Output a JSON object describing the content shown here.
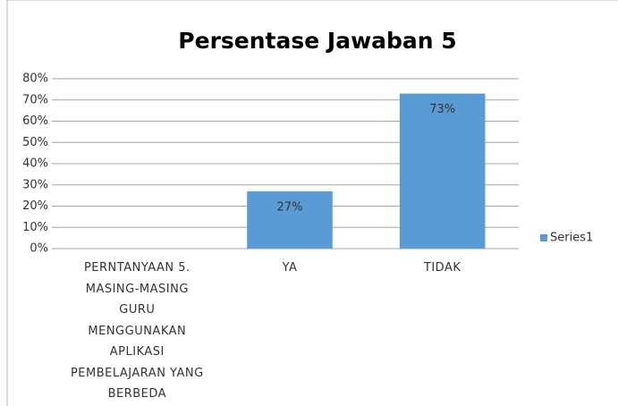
{
  "chart_data": {
    "type": "bar",
    "title": "Persentase Jawaban 5",
    "categories": [
      "PERNTANYAAN 5. MASING-MASING GURU MENGGUNAKAN APLIKASI PEMBELAJARAN YANG BERBEDA",
      "YA",
      "TIDAK"
    ],
    "series": [
      {
        "name": "Series1",
        "color": "#5b9bd5",
        "values": [
          null,
          27,
          73
        ],
        "value_labels": [
          null,
          "27%",
          "73%"
        ]
      }
    ],
    "ylim": [
      0,
      80
    ],
    "yticks": [
      {
        "value": 0,
        "label": "0%"
      },
      {
        "value": 10,
        "label": "10%"
      },
      {
        "value": 20,
        "label": "20%"
      },
      {
        "value": 30,
        "label": "30%"
      },
      {
        "value": 40,
        "label": "40%"
      },
      {
        "value": 50,
        "label": "50%"
      },
      {
        "value": 60,
        "label": "60%"
      },
      {
        "value": 70,
        "label": "70%"
      },
      {
        "value": 80,
        "label": "80%"
      }
    ],
    "grid": true,
    "legend": "right"
  }
}
